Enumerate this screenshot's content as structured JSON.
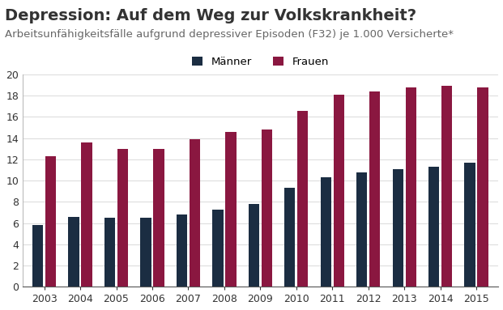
{
  "chart_data": {
    "type": "bar",
    "title": "Depression: Auf dem Weg zur Volkskrankheit?",
    "subtitle": "Arbeitsunfähigkeitsfälle aufgrund depressiver Episoden (F32) je 1.000 Versicherte*",
    "categories": [
      "2003",
      "2004",
      "2005",
      "2006",
      "2007",
      "2008",
      "2009",
      "2010",
      "2011",
      "2012",
      "2013",
      "2014",
      "2015"
    ],
    "series": [
      {
        "name": "Männer",
        "color": "#1b2d42",
        "values": [
          5.8,
          6.6,
          6.5,
          6.5,
          6.8,
          7.3,
          7.8,
          9.3,
          10.3,
          10.8,
          11.1,
          11.3,
          11.7
        ]
      },
      {
        "name": "Frauen",
        "color": "#8a1740",
        "values": [
          12.3,
          13.6,
          13.0,
          13.0,
          13.9,
          14.6,
          14.8,
          16.6,
          18.1,
          18.4,
          18.8,
          18.9,
          18.8
        ]
      }
    ],
    "ylim": [
      0,
      20
    ],
    "yticks": [
      0,
      2,
      4,
      6,
      8,
      10,
      12,
      14,
      16,
      18,
      20
    ],
    "grid": true,
    "legend": "upper center"
  }
}
